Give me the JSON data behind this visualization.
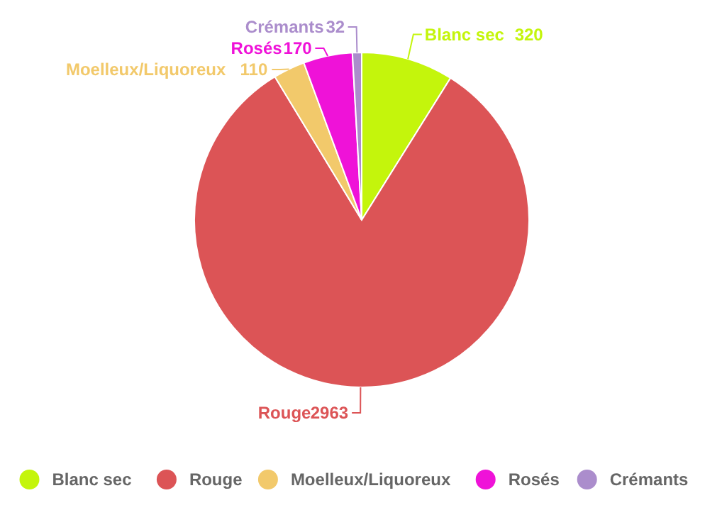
{
  "chart_data": {
    "type": "pie",
    "categories": [
      "Blanc sec",
      "Rouge",
      "Moelleux/Liquoreux",
      "Rosés",
      "Crémants"
    ],
    "values": [
      320,
      2963,
      110,
      170,
      32
    ],
    "colors": [
      "#c4f50c",
      "#dc5456",
      "#f2c96b",
      "#ef12d8",
      "#ab8dcc"
    ],
    "data_labels": true,
    "legend": "bottom"
  }
}
